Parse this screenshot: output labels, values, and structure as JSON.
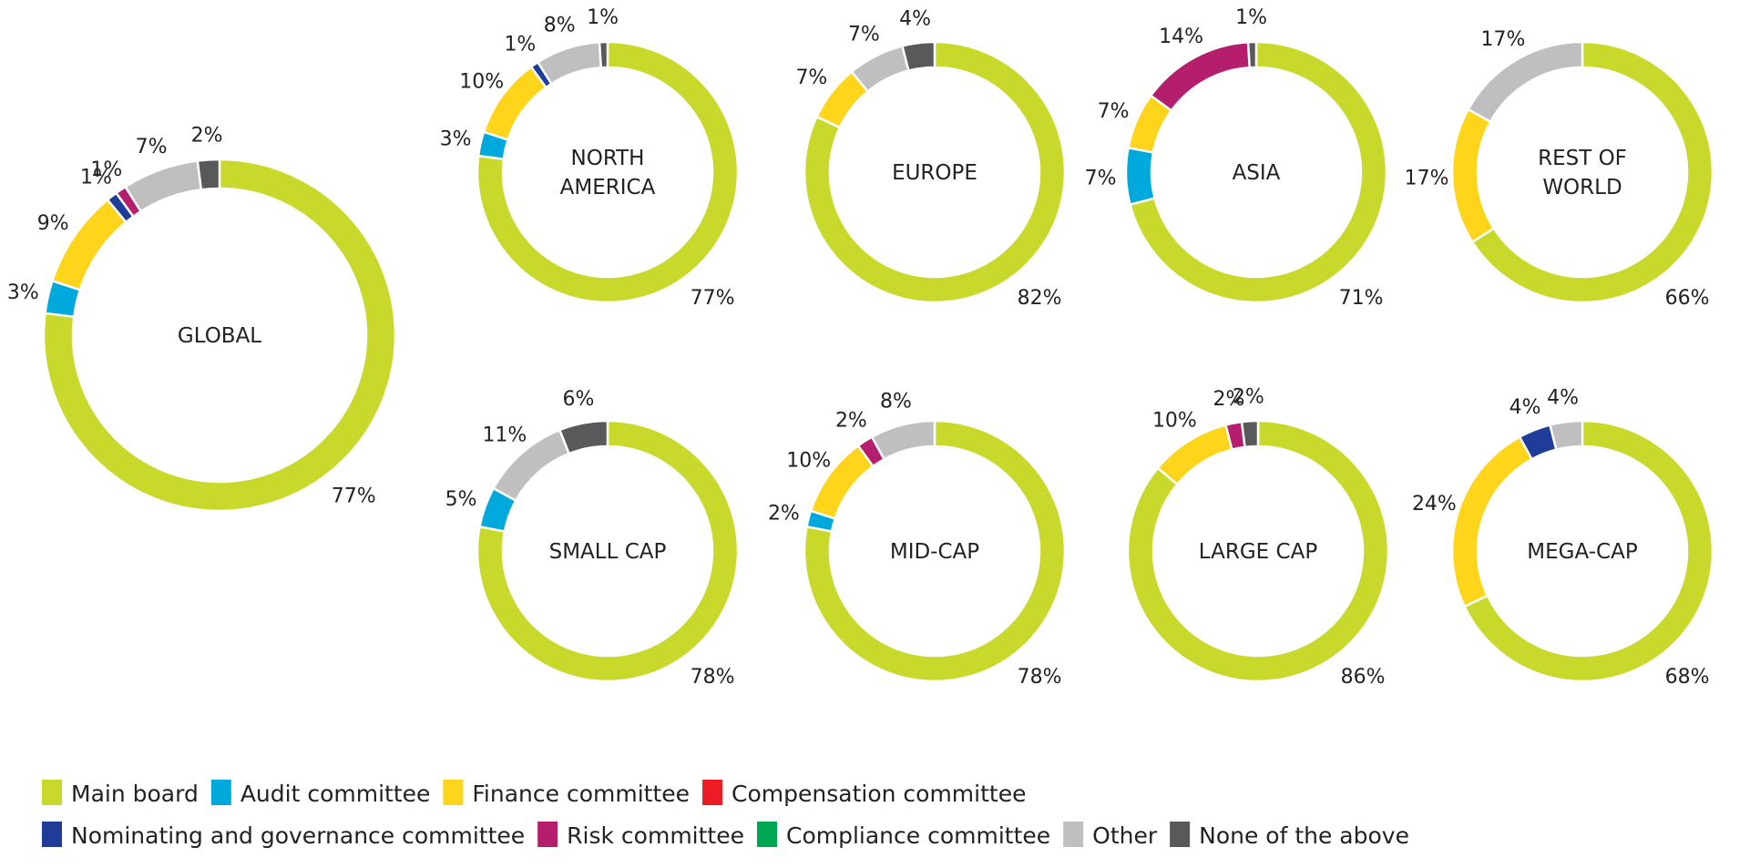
{
  "chart_data": {
    "type": "pie",
    "variant": "donut",
    "legend": {
      "position": "bottom",
      "rows": [
        [
          "main_board",
          "audit",
          "finance",
          "compensation"
        ],
        [
          "nominating",
          "risk",
          "compliance",
          "other",
          "none"
        ]
      ]
    },
    "categories": [
      {
        "key": "main_board",
        "label": "Main board",
        "color": "#c8d92b"
      },
      {
        "key": "audit",
        "label": "Audit committee",
        "color": "#00a9dc"
      },
      {
        "key": "finance",
        "label": "Finance committee",
        "color": "#ffd51c"
      },
      {
        "key": "compensation",
        "label": "Compensation committee",
        "color": "#ed1c24"
      },
      {
        "key": "nominating",
        "label": "Nominating and governance committee",
        "color": "#1f3c99"
      },
      {
        "key": "risk",
        "label": "Risk committee",
        "color": "#b51e6c"
      },
      {
        "key": "compliance",
        "label": "Compliance committee",
        "color": "#00a651"
      },
      {
        "key": "other",
        "label": "Other",
        "color": "#bfbfbf"
      },
      {
        "key": "none",
        "label": "None of the above",
        "color": "#58595b"
      }
    ],
    "donuts": [
      {
        "id": "global",
        "title": [
          "GLOBAL"
        ],
        "size": "large",
        "slices": [
          {
            "key": "main_board",
            "value": 77,
            "label": "77%"
          },
          {
            "key": "audit",
            "value": 3,
            "label": "3%"
          },
          {
            "key": "finance",
            "value": 9,
            "label": "9%"
          },
          {
            "key": "nominating",
            "value": 1,
            "label": "1%"
          },
          {
            "key": "risk",
            "value": 1,
            "label": "1%"
          },
          {
            "key": "other",
            "value": 7,
            "label": "7%"
          },
          {
            "key": "none",
            "value": 2,
            "label": "2%"
          }
        ]
      },
      {
        "id": "north-america",
        "title": [
          "NORTH",
          "AMERICA"
        ],
        "size": "small",
        "slices": [
          {
            "key": "main_board",
            "value": 77,
            "label": "77%"
          },
          {
            "key": "audit",
            "value": 3,
            "label": "3%"
          },
          {
            "key": "finance",
            "value": 10,
            "label": "10%"
          },
          {
            "key": "nominating",
            "value": 1,
            "label": "1%"
          },
          {
            "key": "other",
            "value": 8,
            "label": "8%"
          },
          {
            "key": "none",
            "value": 1,
            "label": "1%"
          }
        ]
      },
      {
        "id": "europe",
        "title": [
          "EUROPE"
        ],
        "size": "small",
        "slices": [
          {
            "key": "main_board",
            "value": 82,
            "label": "82%"
          },
          {
            "key": "finance",
            "value": 7,
            "label": "7%"
          },
          {
            "key": "other",
            "value": 7,
            "label": "7%"
          },
          {
            "key": "none",
            "value": 4,
            "label": "4%"
          }
        ]
      },
      {
        "id": "asia",
        "title": [
          "ASIA"
        ],
        "size": "small",
        "slices": [
          {
            "key": "main_board",
            "value": 71,
            "label": "71%"
          },
          {
            "key": "audit",
            "value": 7,
            "label": "7%"
          },
          {
            "key": "finance",
            "value": 7,
            "label": "7%"
          },
          {
            "key": "risk",
            "value": 14,
            "label": "14%"
          },
          {
            "key": "none",
            "value": 1,
            "label": "1%"
          }
        ]
      },
      {
        "id": "rest-of-world",
        "title": [
          "REST OF",
          "WORLD"
        ],
        "size": "small",
        "slices": [
          {
            "key": "main_board",
            "value": 66,
            "label": "66%"
          },
          {
            "key": "finance",
            "value": 17,
            "label": "17%"
          },
          {
            "key": "other",
            "value": 17,
            "label": "17%"
          }
        ]
      },
      {
        "id": "small-cap",
        "title": [
          "SMALL CAP"
        ],
        "size": "small",
        "slices": [
          {
            "key": "main_board",
            "value": 78,
            "label": "78%"
          },
          {
            "key": "audit",
            "value": 5,
            "label": "5%"
          },
          {
            "key": "other",
            "value": 11,
            "label": "11%"
          },
          {
            "key": "none",
            "value": 6,
            "label": "6%"
          }
        ]
      },
      {
        "id": "mid-cap",
        "title": [
          "MID-CAP"
        ],
        "size": "small",
        "slices": [
          {
            "key": "main_board",
            "value": 78,
            "label": "78%"
          },
          {
            "key": "audit",
            "value": 2,
            "label": "2%"
          },
          {
            "key": "finance",
            "value": 10,
            "label": "10%"
          },
          {
            "key": "risk",
            "value": 2,
            "label": "2%"
          },
          {
            "key": "other",
            "value": 8,
            "label": "8%"
          }
        ]
      },
      {
        "id": "large-cap",
        "title": [
          "LARGE CAP"
        ],
        "size": "small",
        "slices": [
          {
            "key": "main_board",
            "value": 86,
            "label": "86%"
          },
          {
            "key": "finance",
            "value": 10,
            "label": "10%"
          },
          {
            "key": "risk",
            "value": 2,
            "label": "2%"
          },
          {
            "key": "none",
            "value": 2,
            "label": "2%"
          }
        ]
      },
      {
        "id": "mega-cap",
        "title": [
          "MEGA-CAP"
        ],
        "size": "small",
        "slices": [
          {
            "key": "main_board",
            "value": 68,
            "label": "68%"
          },
          {
            "key": "finance",
            "value": 24,
            "label": "24%"
          },
          {
            "key": "nominating",
            "value": 4,
            "label": "4%"
          },
          {
            "key": "other",
            "value": 4,
            "label": "4%"
          }
        ]
      }
    ]
  }
}
